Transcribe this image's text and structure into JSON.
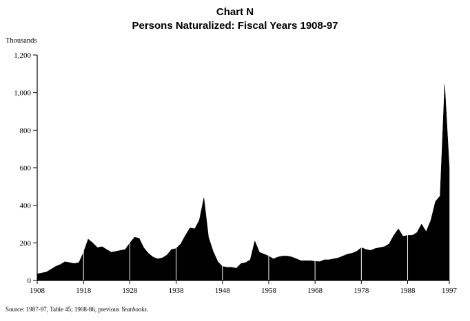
{
  "chart_data": {
    "type": "area",
    "title": "Chart N",
    "subtitle": "Persons Naturalized: Fiscal Years 1908-97",
    "ylabel": "Thousands",
    "xlabel": "",
    "ylim": [
      0,
      1200
    ],
    "xlim": [
      1908,
      1997
    ],
    "yticks": [
      "0",
      "200",
      "400",
      "600",
      "800",
      "1,000",
      "1,200"
    ],
    "ytick_values": [
      0,
      200,
      400,
      600,
      800,
      1000,
      1200
    ],
    "xticks": [
      "1908",
      "1918",
      "1928",
      "1938",
      "1948",
      "1958",
      "1968",
      "1978",
      "1988",
      "1997"
    ],
    "xtick_values": [
      1908,
      1918,
      1928,
      1938,
      1948,
      1958,
      1968,
      1978,
      1988,
      1997
    ],
    "grid": false,
    "legend": "none",
    "fill_color": "#000000",
    "gridline_color": "#ffffff",
    "x": [
      1908,
      1909,
      1910,
      1911,
      1912,
      1913,
      1914,
      1915,
      1916,
      1917,
      1918,
      1919,
      1920,
      1921,
      1922,
      1923,
      1924,
      1925,
      1926,
      1927,
      1928,
      1929,
      1930,
      1931,
      1932,
      1933,
      1934,
      1935,
      1936,
      1937,
      1938,
      1939,
      1940,
      1941,
      1942,
      1943,
      1944,
      1945,
      1946,
      1947,
      1948,
      1949,
      1950,
      1951,
      1952,
      1953,
      1954,
      1955,
      1956,
      1957,
      1958,
      1959,
      1960,
      1961,
      1962,
      1963,
      1964,
      1965,
      1966,
      1967,
      1968,
      1969,
      1970,
      1971,
      1972,
      1973,
      1974,
      1975,
      1976,
      1977,
      1978,
      1979,
      1980,
      1981,
      1982,
      1983,
      1984,
      1985,
      1986,
      1987,
      1988,
      1989,
      1990,
      1991,
      1992,
      1993,
      1994,
      1995,
      1996,
      1997
    ],
    "values": [
      35,
      40,
      45,
      60,
      75,
      85,
      100,
      95,
      90,
      95,
      150,
      220,
      200,
      175,
      180,
      165,
      150,
      155,
      160,
      165,
      200,
      230,
      225,
      175,
      145,
      125,
      115,
      120,
      135,
      165,
      170,
      195,
      240,
      280,
      275,
      320,
      440,
      230,
      155,
      100,
      75,
      70,
      70,
      65,
      90,
      95,
      110,
      210,
      150,
      140,
      130,
      115,
      125,
      130,
      130,
      125,
      115,
      105,
      105,
      105,
      102,
      100,
      110,
      110,
      115,
      120,
      130,
      140,
      145,
      155,
      175,
      165,
      160,
      170,
      175,
      180,
      195,
      240,
      275,
      235,
      240,
      240,
      255,
      300,
      260,
      320,
      420,
      450,
      1045,
      600
    ]
  },
  "source": {
    "text": "Source:  1987-97, Table 45;  1908-86, previous ",
    "italic": "Yearbooks",
    "end": "."
  }
}
